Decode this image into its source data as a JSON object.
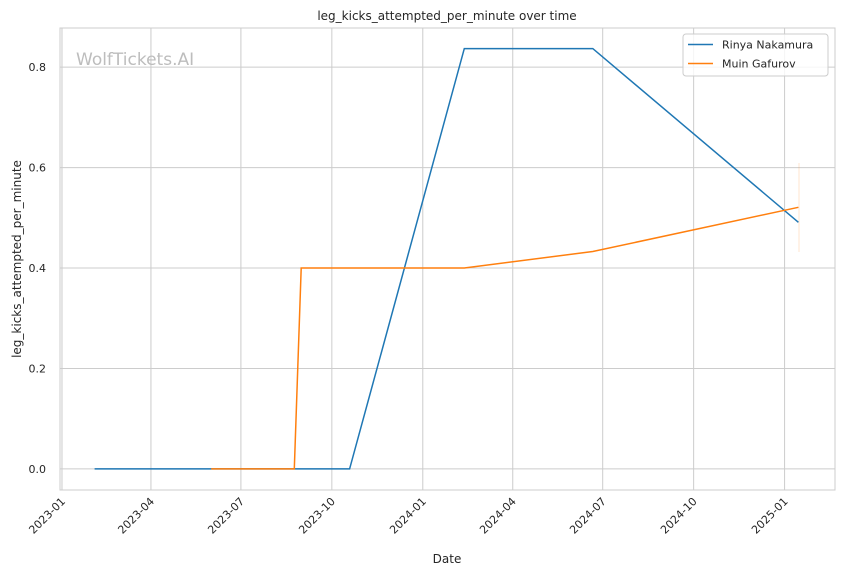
{
  "chart_data": {
    "type": "line",
    "title": "leg_kicks_attempted_per_minute over time",
    "xlabel": "Date",
    "ylabel": "leg_kicks_attempted_per_minute",
    "xlim": [
      "2022-12-30",
      "2025-02-21"
    ],
    "ylim": [
      -0.042,
      0.878
    ],
    "x_ticks": [
      "2023-01",
      "2023-04",
      "2023-07",
      "2023-10",
      "2024-01",
      "2024-04",
      "2024-07",
      "2024-10",
      "2025-01"
    ],
    "y_ticks": [
      "0.0",
      "0.2",
      "0.4",
      "0.6",
      "0.8"
    ],
    "grid": true,
    "legend_position": "top-right",
    "watermark": "WolfTickets.AI",
    "series": [
      {
        "name": "Rinya Nakamura",
        "color": "#1f77b4",
        "x": [
          "2023-02-03",
          "2023-10-19",
          "2024-02-12",
          "2024-06-21",
          "2025-01-15"
        ],
        "y": [
          0.0,
          0.0,
          0.837,
          0.837,
          0.491
        ]
      },
      {
        "name": "Muin Gafurov",
        "color": "#ff7f0e",
        "x": [
          "2023-06-01",
          "2023-08-24",
          "2023-08-31",
          "2024-02-12",
          "2024-06-21",
          "2025-01-15"
        ],
        "y": [
          0.0,
          0.0,
          0.4,
          0.4,
          0.433,
          0.521
        ]
      }
    ]
  }
}
